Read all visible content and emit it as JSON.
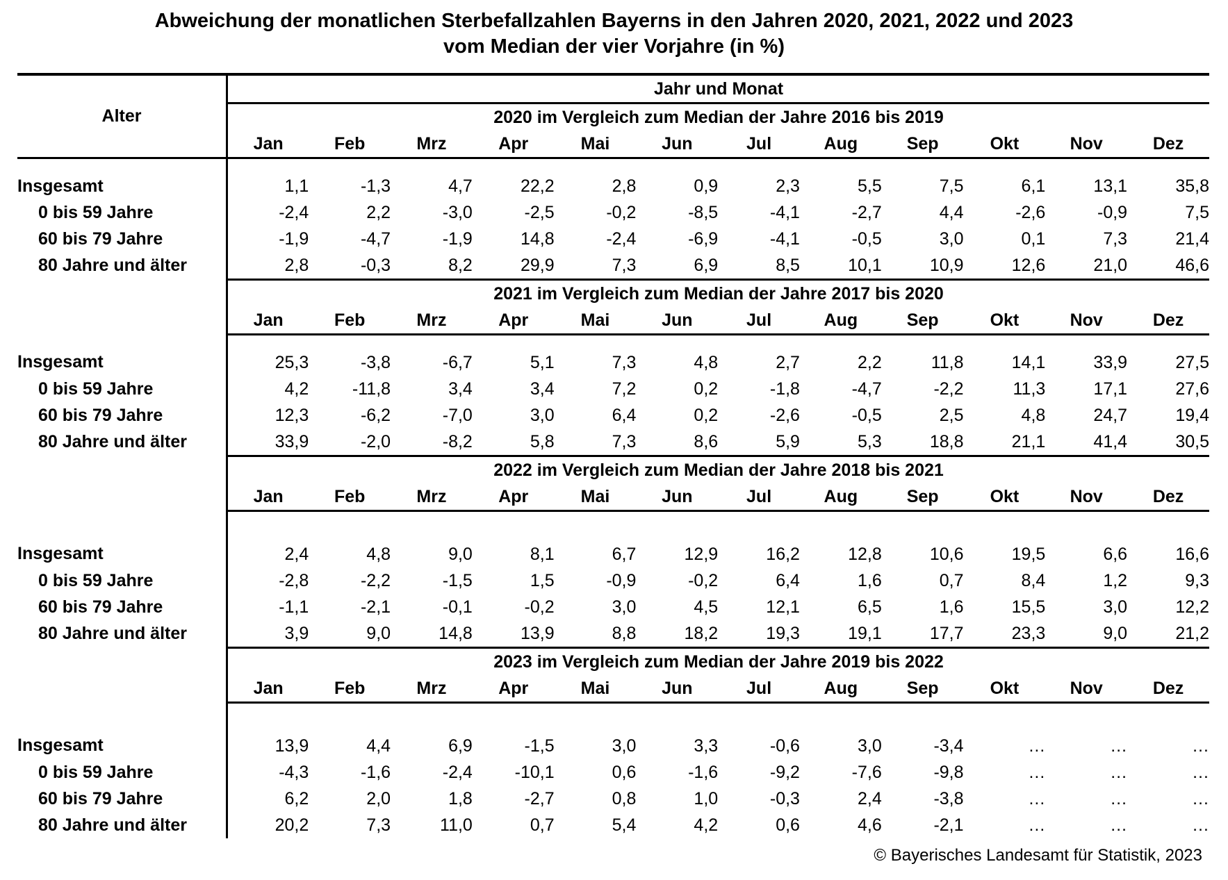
{
  "title": {
    "line1": "Abweichung der monatlichen Sterbefallzahlen Bayerns in den Jahren 2020, 2021, 2022 und 2023",
    "line2": "vom Median der vier Vorjahre (in %)"
  },
  "table": {
    "corner_header": "Alter",
    "top_header": "Jahr und Monat"
  },
  "footer": {
    "copyright": "© Bayerisches Landesamt für Statistik, 2023"
  },
  "chart_data": {
    "type": "table",
    "title": "Abweichung der monatlichen Sterbefallzahlen Bayerns in den Jahren 2020, 2021, 2022 und 2023 vom Median der vier Vorjahre (in %)",
    "row_header": "Alter",
    "column_group_label": "Jahr und Monat",
    "columns": [
      "Jan",
      "Feb",
      "Mrz",
      "Apr",
      "Mai",
      "Jun",
      "Jul",
      "Aug",
      "Sep",
      "Okt",
      "Nov",
      "Dez"
    ],
    "row_labels": [
      "Insgesamt",
      "0 bis 59 Jahre",
      "60 bis 79 Jahre",
      "80 Jahre und älter"
    ],
    "value_unit": "percent deviation",
    "number_format": "de-DE, one decimal, comma separator",
    "missing_value_symbol": "…",
    "sections": [
      {
        "heading": "2020 im Vergleich zum Median der Jahre 2016 bis 2019",
        "rows": [
          {
            "label": "Insgesamt",
            "indent": false,
            "values": [
              1.1,
              -1.3,
              4.7,
              22.2,
              2.8,
              0.9,
              2.3,
              5.5,
              7.5,
              6.1,
              13.1,
              35.8
            ]
          },
          {
            "label": "0 bis 59 Jahre",
            "indent": true,
            "values": [
              -2.4,
              2.2,
              -3.0,
              -2.5,
              -0.2,
              -8.5,
              -4.1,
              -2.7,
              4.4,
              -2.6,
              -0.9,
              7.5
            ]
          },
          {
            "label": "60 bis 79 Jahre",
            "indent": true,
            "values": [
              -1.9,
              -4.7,
              -1.9,
              14.8,
              -2.4,
              -6.9,
              -4.1,
              -0.5,
              3.0,
              0.1,
              7.3,
              21.4
            ]
          },
          {
            "label": "80 Jahre und älter",
            "indent": true,
            "values": [
              2.8,
              -0.3,
              8.2,
              29.9,
              7.3,
              6.9,
              8.5,
              10.1,
              10.9,
              12.6,
              21.0,
              46.6
            ]
          }
        ]
      },
      {
        "heading": "2021 im Vergleich zum Median der Jahre 2017 bis 2020",
        "rows": [
          {
            "label": "Insgesamt",
            "indent": false,
            "values": [
              25.3,
              -3.8,
              -6.7,
              5.1,
              7.3,
              4.8,
              2.7,
              2.2,
              11.8,
              14.1,
              33.9,
              27.5
            ]
          },
          {
            "label": "0 bis 59 Jahre",
            "indent": true,
            "values": [
              4.2,
              -11.8,
              3.4,
              3.4,
              7.2,
              0.2,
              -1.8,
              -4.7,
              -2.2,
              11.3,
              17.1,
              27.6
            ]
          },
          {
            "label": "60 bis 79 Jahre",
            "indent": true,
            "values": [
              12.3,
              -6.2,
              -7.0,
              3.0,
              6.4,
              0.2,
              -2.6,
              -0.5,
              2.5,
              4.8,
              24.7,
              19.4
            ]
          },
          {
            "label": "80 Jahre und älter",
            "indent": true,
            "values": [
              33.9,
              -2.0,
              -8.2,
              5.8,
              7.3,
              8.6,
              5.9,
              5.3,
              18.8,
              21.1,
              41.4,
              30.5
            ]
          }
        ]
      },
      {
        "heading": "2022 im Vergleich zum Median der Jahre 2018 bis 2021",
        "rows": [
          {
            "label": "Insgesamt",
            "indent": false,
            "values": [
              2.4,
              4.8,
              9.0,
              8.1,
              6.7,
              12.9,
              16.2,
              12.8,
              10.6,
              19.5,
              6.6,
              16.6
            ]
          },
          {
            "label": "0 bis 59 Jahre",
            "indent": true,
            "values": [
              -2.8,
              -2.2,
              -1.5,
              1.5,
              -0.9,
              -0.2,
              6.4,
              1.6,
              0.7,
              8.4,
              1.2,
              9.3
            ]
          },
          {
            "label": "60 bis 79 Jahre",
            "indent": true,
            "values": [
              -1.1,
              -2.1,
              -0.1,
              -0.2,
              3.0,
              4.5,
              12.1,
              6.5,
              1.6,
              15.5,
              3.0,
              12.2
            ]
          },
          {
            "label": "80 Jahre und älter",
            "indent": true,
            "values": [
              3.9,
              9.0,
              14.8,
              13.9,
              8.8,
              18.2,
              19.3,
              19.1,
              17.7,
              23.3,
              9.0,
              21.2
            ]
          }
        ]
      },
      {
        "heading": "2023 im Vergleich zum Median der Jahre 2019 bis 2022",
        "rows": [
          {
            "label": "Insgesamt",
            "indent": false,
            "values": [
              13.9,
              4.4,
              6.9,
              -1.5,
              3.0,
              3.3,
              -0.6,
              3.0,
              -3.4,
              null,
              null,
              null
            ]
          },
          {
            "label": "0 bis 59 Jahre",
            "indent": true,
            "values": [
              -4.3,
              -1.6,
              -2.4,
              -10.1,
              0.6,
              -1.6,
              -9.2,
              -7.6,
              -9.8,
              null,
              null,
              null
            ]
          },
          {
            "label": "60 bis 79 Jahre",
            "indent": true,
            "values": [
              6.2,
              2.0,
              1.8,
              -2.7,
              0.8,
              1.0,
              -0.3,
              2.4,
              -3.8,
              null,
              null,
              null
            ]
          },
          {
            "label": "80 Jahre und älter",
            "indent": true,
            "values": [
              20.2,
              7.3,
              11.0,
              0.7,
              5.4,
              4.2,
              0.6,
              4.6,
              -2.1,
              null,
              null,
              null
            ]
          }
        ]
      }
    ]
  }
}
